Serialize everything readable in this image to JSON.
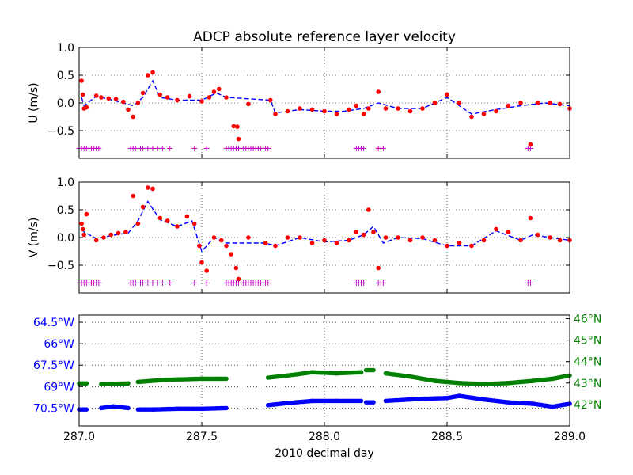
{
  "title": "ADCP absolute reference layer velocity",
  "xlabel": "2010 decimal day",
  "x_ticks": [
    "287.0",
    "287.5",
    "288.0",
    "288.5",
    "289.0"
  ],
  "x_range": [
    287.0,
    289.0
  ],
  "colors": {
    "obs": "#ff0000",
    "fit": "#0000ff",
    "flag": "#bf00bf",
    "lon": "#0000ff",
    "lat": "#008000",
    "grid": "#000000"
  },
  "chart_data": [
    {
      "type": "scatter",
      "name": "u",
      "ylabel": "U (m/s)",
      "ylim": [
        -1.0,
        1.0
      ],
      "y_ticks": [
        "1.0",
        "0.5",
        "0.0",
        "−0.5"
      ],
      "y_tick_values": [
        1.0,
        0.5,
        0.0,
        -0.5
      ],
      "grid": true,
      "flag_y": -0.82,
      "series_points": [
        [
          287.01,
          0.4
        ],
        [
          287.015,
          0.15
        ],
        [
          287.02,
          -0.1
        ],
        [
          287.03,
          -0.08
        ],
        [
          287.07,
          0.13
        ],
        [
          287.09,
          0.1
        ],
        [
          287.12,
          0.08
        ],
        [
          287.15,
          0.07
        ],
        [
          287.18,
          0.02
        ],
        [
          287.2,
          -0.12
        ],
        [
          287.22,
          -0.25
        ],
        [
          287.24,
          0.0
        ],
        [
          287.26,
          0.18
        ],
        [
          287.28,
          0.5
        ],
        [
          287.3,
          0.55
        ],
        [
          287.33,
          0.15
        ],
        [
          287.36,
          0.1
        ],
        [
          287.4,
          0.05
        ],
        [
          287.45,
          0.12
        ],
        [
          287.5,
          0.03
        ],
        [
          287.53,
          0.1
        ],
        [
          287.55,
          0.2
        ],
        [
          287.57,
          0.25
        ],
        [
          287.6,
          0.1
        ],
        [
          287.63,
          -0.42
        ],
        [
          287.645,
          -0.43
        ],
        [
          287.65,
          -0.65
        ],
        [
          287.69,
          -0.02
        ],
        [
          287.78,
          0.05
        ],
        [
          287.8,
          -0.2
        ],
        [
          287.85,
          -0.15
        ],
        [
          287.9,
          -0.1
        ],
        [
          287.95,
          -0.12
        ],
        [
          288.0,
          -0.15
        ],
        [
          288.05,
          -0.2
        ],
        [
          288.1,
          -0.12
        ],
        [
          288.13,
          -0.05
        ],
        [
          288.16,
          -0.2
        ],
        [
          288.18,
          -0.1
        ],
        [
          288.22,
          0.2
        ],
        [
          288.25,
          -0.1
        ],
        [
          288.3,
          -0.1
        ],
        [
          288.35,
          -0.15
        ],
        [
          288.4,
          -0.1
        ],
        [
          288.45,
          0.0
        ],
        [
          288.5,
          0.15
        ],
        [
          288.55,
          0.0
        ],
        [
          288.6,
          -0.25
        ],
        [
          288.65,
          -0.2
        ],
        [
          288.7,
          -0.15
        ],
        [
          288.75,
          -0.05
        ],
        [
          288.8,
          0.0
        ],
        [
          288.84,
          -0.75
        ],
        [
          288.87,
          0.0
        ],
        [
          288.92,
          0.0
        ],
        [
          288.96,
          -0.02
        ],
        [
          289.0,
          -0.1
        ]
      ],
      "fit_points": [
        [
          287.01,
          0.1
        ],
        [
          287.02,
          -0.05
        ],
        [
          287.07,
          0.12
        ],
        [
          287.12,
          0.07
        ],
        [
          287.18,
          0.0
        ],
        [
          287.22,
          -0.05
        ],
        [
          287.26,
          0.1
        ],
        [
          287.3,
          0.4
        ],
        [
          287.33,
          0.1
        ],
        [
          287.4,
          0.05
        ],
        [
          287.5,
          0.05
        ],
        [
          287.56,
          0.18
        ],
        [
          287.6,
          0.1
        ],
        [
          287.78,
          0.05
        ],
        [
          287.8,
          -0.18
        ],
        [
          287.9,
          -0.12
        ],
        [
          288.0,
          -0.15
        ],
        [
          288.08,
          -0.15
        ],
        [
          288.16,
          -0.1
        ],
        [
          288.22,
          0.0
        ],
        [
          288.3,
          -0.1
        ],
        [
          288.4,
          -0.1
        ],
        [
          288.5,
          0.1
        ],
        [
          288.6,
          -0.2
        ],
        [
          288.7,
          -0.12
        ],
        [
          288.8,
          -0.05
        ],
        [
          288.9,
          0.0
        ],
        [
          289.0,
          -0.05
        ]
      ],
      "flag_days": [
        287.0,
        287.01,
        287.02,
        287.03,
        287.04,
        287.05,
        287.06,
        287.07,
        287.08,
        287.21,
        287.22,
        287.23,
        287.25,
        287.26,
        287.28,
        287.3,
        287.32,
        287.34,
        287.37,
        287.47,
        287.52,
        287.6,
        287.61,
        287.62,
        287.63,
        287.64,
        287.65,
        287.66,
        287.67,
        287.68,
        287.69,
        287.7,
        287.71,
        287.72,
        287.73,
        287.74,
        287.75,
        287.76,
        287.77,
        288.13,
        288.14,
        288.15,
        288.16,
        288.22,
        288.23,
        288.24,
        288.83,
        288.84
      ]
    },
    {
      "type": "scatter",
      "name": "v",
      "ylabel": "V (m/s)",
      "ylim": [
        -1.0,
        1.0
      ],
      "y_ticks": [
        "1.0",
        "0.5",
        "0.0",
        "−0.5"
      ],
      "y_tick_values": [
        1.0,
        0.5,
        0.0,
        -0.5
      ],
      "grid": true,
      "flag_y": -0.82,
      "series_points": [
        [
          287.01,
          0.25
        ],
        [
          287.015,
          0.15
        ],
        [
          287.02,
          0.05
        ],
        [
          287.03,
          0.42
        ],
        [
          287.07,
          -0.05
        ],
        [
          287.1,
          0.0
        ],
        [
          287.13,
          0.05
        ],
        [
          287.16,
          0.08
        ],
        [
          287.19,
          0.1
        ],
        [
          287.22,
          0.75
        ],
        [
          287.24,
          0.25
        ],
        [
          287.26,
          0.55
        ],
        [
          287.28,
          0.9
        ],
        [
          287.3,
          0.88
        ],
        [
          287.33,
          0.35
        ],
        [
          287.36,
          0.3
        ],
        [
          287.4,
          0.2
        ],
        [
          287.44,
          0.38
        ],
        [
          287.47,
          0.25
        ],
        [
          287.49,
          -0.15
        ],
        [
          287.5,
          -0.45
        ],
        [
          287.52,
          -0.6
        ],
        [
          287.55,
          0.0
        ],
        [
          287.58,
          -0.05
        ],
        [
          287.6,
          -0.15
        ],
        [
          287.62,
          -0.3
        ],
        [
          287.64,
          -0.55
        ],
        [
          287.65,
          -0.75
        ],
        [
          287.69,
          0.0
        ],
        [
          287.76,
          -0.1
        ],
        [
          287.8,
          -0.15
        ],
        [
          287.85,
          0.0
        ],
        [
          287.9,
          0.0
        ],
        [
          287.95,
          -0.1
        ],
        [
          288.0,
          -0.05
        ],
        [
          288.05,
          -0.1
        ],
        [
          288.1,
          -0.05
        ],
        [
          288.13,
          0.1
        ],
        [
          288.16,
          0.05
        ],
        [
          288.18,
          0.5
        ],
        [
          288.2,
          0.1
        ],
        [
          288.22,
          -0.55
        ],
        [
          288.25,
          0.0
        ],
        [
          288.3,
          0.0
        ],
        [
          288.35,
          -0.05
        ],
        [
          288.4,
          0.0
        ],
        [
          288.45,
          -0.05
        ],
        [
          288.5,
          -0.15
        ],
        [
          288.55,
          -0.1
        ],
        [
          288.6,
          -0.15
        ],
        [
          288.65,
          -0.05
        ],
        [
          288.7,
          0.15
        ],
        [
          288.75,
          0.1
        ],
        [
          288.8,
          -0.05
        ],
        [
          288.84,
          0.35
        ],
        [
          288.87,
          0.05
        ],
        [
          288.92,
          0.0
        ],
        [
          288.96,
          -0.05
        ],
        [
          289.0,
          -0.05
        ]
      ],
      "fit_points": [
        [
          287.01,
          0.15
        ],
        [
          287.02,
          0.1
        ],
        [
          287.07,
          -0.02
        ],
        [
          287.15,
          0.05
        ],
        [
          287.2,
          0.08
        ],
        [
          287.24,
          0.3
        ],
        [
          287.28,
          0.65
        ],
        [
          287.33,
          0.32
        ],
        [
          287.4,
          0.2
        ],
        [
          287.46,
          0.3
        ],
        [
          287.5,
          -0.25
        ],
        [
          287.55,
          0.0
        ],
        [
          287.6,
          -0.1
        ],
        [
          287.76,
          -0.1
        ],
        [
          287.8,
          -0.15
        ],
        [
          287.9,
          0.0
        ],
        [
          288.0,
          -0.08
        ],
        [
          288.1,
          -0.05
        ],
        [
          288.16,
          0.05
        ],
        [
          288.2,
          0.2
        ],
        [
          288.24,
          -0.1
        ],
        [
          288.3,
          0.0
        ],
        [
          288.4,
          -0.02
        ],
        [
          288.5,
          -0.15
        ],
        [
          288.6,
          -0.15
        ],
        [
          288.7,
          0.12
        ],
        [
          288.8,
          -0.05
        ],
        [
          288.85,
          0.05
        ],
        [
          288.92,
          0.0
        ],
        [
          289.0,
          -0.05
        ]
      ],
      "flag_days": [
        287.0,
        287.01,
        287.02,
        287.03,
        287.04,
        287.05,
        287.06,
        287.07,
        287.08,
        287.21,
        287.22,
        287.23,
        287.25,
        287.26,
        287.28,
        287.3,
        287.32,
        287.34,
        287.37,
        287.47,
        287.52,
        287.6,
        287.61,
        287.62,
        287.63,
        287.64,
        287.65,
        287.66,
        287.67,
        287.68,
        287.69,
        287.7,
        287.71,
        287.72,
        287.73,
        287.74,
        287.75,
        287.76,
        287.77,
        288.13,
        288.14,
        288.15,
        288.16,
        288.22,
        288.23,
        288.24,
        288.83,
        288.84
      ]
    },
    {
      "type": "scatter",
      "name": "position",
      "grid": true,
      "left_axis": {
        "ticks": [
          "64.5°W",
          "66°W",
          "67.5°W",
          "69°W",
          "70.5°W"
        ],
        "tick_values": [
          64.5,
          66.0,
          67.5,
          69.0,
          70.5
        ],
        "range": [
          64.0,
          71.75
        ]
      },
      "right_axis": {
        "ticks": [
          "46°N",
          "45°N",
          "44°N",
          "43°N",
          "42°N"
        ],
        "tick_values": [
          46,
          45,
          44,
          43,
          42
        ],
        "range": [
          46.166,
          41.0
        ]
      },
      "lon_segments": [
        [
          [
            287.0,
            70.6
          ],
          [
            287.03,
            70.6
          ]
        ],
        [
          [
            287.09,
            70.5
          ],
          [
            287.14,
            70.38
          ],
          [
            287.2,
            70.5
          ]
        ],
        [
          [
            287.24,
            70.6
          ],
          [
            287.3,
            70.6
          ],
          [
            287.4,
            70.55
          ],
          [
            287.5,
            70.55
          ],
          [
            287.6,
            70.5
          ]
        ],
        [
          [
            287.77,
            70.3
          ],
          [
            287.85,
            70.15
          ],
          [
            287.95,
            70.0
          ],
          [
            288.05,
            70.0
          ],
          [
            288.15,
            70.0
          ]
        ],
        [
          [
            288.17,
            70.1
          ],
          [
            288.2,
            70.1
          ]
        ],
        [
          [
            288.25,
            70.0
          ],
          [
            288.4,
            69.85
          ],
          [
            288.5,
            69.8
          ],
          [
            288.55,
            69.65
          ],
          [
            288.65,
            69.9
          ],
          [
            288.75,
            70.1
          ],
          [
            288.85,
            70.2
          ],
          [
            288.93,
            70.4
          ],
          [
            289.0,
            70.2
          ]
        ]
      ],
      "lat_segments": [
        [
          [
            287.0,
            42.98
          ],
          [
            287.03,
            42.98
          ]
        ],
        [
          [
            287.09,
            42.95
          ],
          [
            287.2,
            42.98
          ]
        ],
        [
          [
            287.24,
            43.05
          ],
          [
            287.35,
            43.15
          ],
          [
            287.5,
            43.2
          ],
          [
            287.6,
            43.2
          ]
        ],
        [
          [
            287.77,
            43.25
          ],
          [
            287.85,
            43.35
          ],
          [
            287.95,
            43.5
          ],
          [
            288.05,
            43.45
          ],
          [
            288.15,
            43.5
          ]
        ],
        [
          [
            288.17,
            43.6
          ],
          [
            288.2,
            43.6
          ]
        ],
        [
          [
            288.25,
            43.45
          ],
          [
            288.35,
            43.3
          ],
          [
            288.45,
            43.1
          ],
          [
            288.55,
            43.0
          ],
          [
            288.65,
            42.95
          ],
          [
            288.75,
            43.0
          ],
          [
            288.85,
            43.1
          ],
          [
            288.93,
            43.2
          ],
          [
            289.0,
            43.35
          ]
        ]
      ]
    }
  ]
}
